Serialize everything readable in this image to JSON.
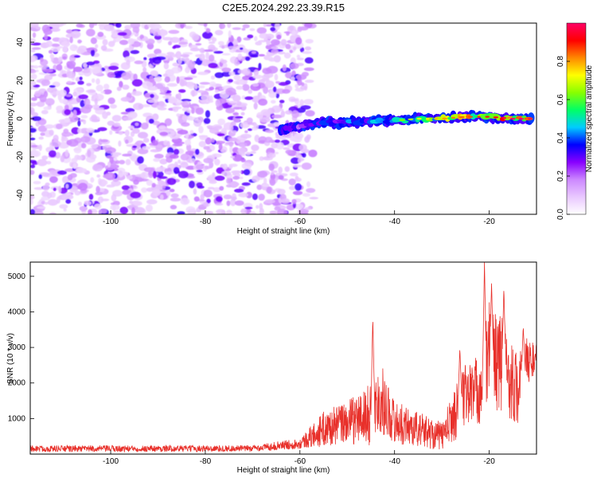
{
  "title": "C2E5.2024.292.23.39.R15",
  "chart_data": [
    {
      "type": "heatmap",
      "xlabel": "Height of straight line (km)",
      "ylabel": "Frequency (Hz)",
      "xlim": [
        -117,
        -10
      ],
      "ylim": [
        -50,
        50
      ],
      "xticks": [
        -100,
        -80,
        -60,
        -40,
        -20
      ],
      "yticks": [
        -40,
        -20,
        0,
        20,
        40
      ],
      "grid": false,
      "colorbar": {
        "label": "Normalized spectral amplitude",
        "range": [
          0,
          1
        ],
        "ticks": [
          0.0,
          0.2,
          0.4,
          0.6,
          0.8
        ],
        "colors": [
          "#ffffff",
          "#e9c8ff",
          "#cc88ff",
          "#8800ff",
          "#0000ff",
          "#00ccff",
          "#00ff66",
          "#88ff00",
          "#ffff00",
          "#ff8800",
          "#ff0000",
          "#ff0066"
        ]
      },
      "noise_region": {
        "x": [
          -117,
          -57
        ],
        "y": [
          -50,
          50
        ],
        "amplitude": [
          0.0,
          0.15
        ]
      },
      "signal_track": [
        {
          "x": -64,
          "y": -6,
          "amp": 0.3
        },
        {
          "x": -60,
          "y": -4,
          "amp": 0.35
        },
        {
          "x": -56,
          "y": -2,
          "amp": 0.4
        },
        {
          "x": -50,
          "y": -2,
          "amp": 0.45
        },
        {
          "x": -45,
          "y": -1,
          "amp": 0.5
        },
        {
          "x": -40,
          "y": -1,
          "amp": 0.55
        },
        {
          "x": -35,
          "y": 0,
          "amp": 0.65
        },
        {
          "x": -30,
          "y": 0,
          "amp": 0.75
        },
        {
          "x": -25,
          "y": 1,
          "amp": 0.8
        },
        {
          "x": -20,
          "y": 1,
          "amp": 0.85
        },
        {
          "x": -15,
          "y": 0,
          "amp": 0.95
        },
        {
          "x": -11,
          "y": 0,
          "amp": 1.0
        }
      ]
    },
    {
      "type": "line",
      "xlabel": "Height of straight line (km)",
      "ylabel": "SNR (10 * v/v)",
      "xlim": [
        -117,
        -10
      ],
      "ylim": [
        0,
        5400
      ],
      "xticks": [
        -100,
        -80,
        -60,
        -40,
        -20
      ],
      "yticks": [
        1000,
        2000,
        3000,
        4000,
        5000
      ],
      "grid": false,
      "color": "#e8302a",
      "envelope": [
        {
          "x": -117,
          "mean": 150,
          "spread": 90
        },
        {
          "x": -70,
          "mean": 160,
          "spread": 90
        },
        {
          "x": -60,
          "mean": 300,
          "spread": 150
        },
        {
          "x": -55,
          "mean": 700,
          "spread": 500
        },
        {
          "x": -50,
          "mean": 900,
          "spread": 600
        },
        {
          "x": -45,
          "mean": 1100,
          "spread": 900
        },
        {
          "x": -43,
          "mean": 1600,
          "spread": 1000
        },
        {
          "x": -40,
          "mean": 900,
          "spread": 600
        },
        {
          "x": -35,
          "mean": 700,
          "spread": 500
        },
        {
          "x": -30,
          "mean": 500,
          "spread": 400
        },
        {
          "x": -27,
          "mean": 1200,
          "spread": 800
        },
        {
          "x": -25,
          "mean": 1700,
          "spread": 900
        },
        {
          "x": -22,
          "mean": 1800,
          "spread": 1000
        },
        {
          "x": -20,
          "mean": 2800,
          "spread": 1600
        },
        {
          "x": -17,
          "mean": 2500,
          "spread": 1400
        },
        {
          "x": -14,
          "mean": 1800,
          "spread": 1000
        },
        {
          "x": -12,
          "mean": 2600,
          "spread": 700
        },
        {
          "x": -10,
          "mean": 2700,
          "spread": 400
        }
      ],
      "peaks": [
        {
          "x": -44.6,
          "y": 3850
        },
        {
          "x": -26.2,
          "y": 3000
        },
        {
          "x": -21.0,
          "y": 5400
        },
        {
          "x": -19.5,
          "y": 4800
        },
        {
          "x": -16.9,
          "y": 4700
        },
        {
          "x": -12.8,
          "y": 3600
        }
      ]
    }
  ]
}
